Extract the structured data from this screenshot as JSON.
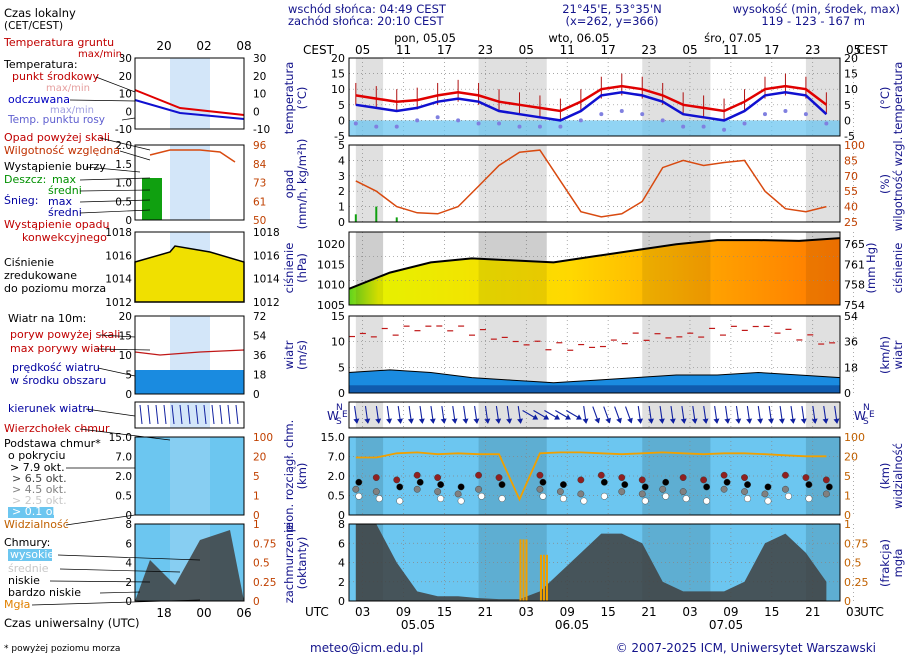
{
  "header": {
    "sunrise": "wschód słońca: 04:49 CEST",
    "sunset": "zachód słońca: 20:10 CEST",
    "coords": "21°45'E, 53°35'N",
    "grid": "(x=262,  y=366)",
    "height_label": "wysokość (min, środek, max)",
    "height_values": "119 - 123 - 167 m"
  },
  "time": {
    "cest_label": "CEST",
    "utc_label": "UTC",
    "cest_hours": [
      "05",
      "11",
      "17",
      "23",
      "05",
      "11",
      "17",
      "23",
      "05",
      "11",
      "17",
      "23",
      "05"
    ],
    "utc_hours": [
      "03",
      "09",
      "15",
      "21",
      "03",
      "09",
      "15",
      "21",
      "03",
      "09",
      "15",
      "21",
      "03"
    ],
    "day_names": [
      "pon, 05.05",
      "wto, 06.05",
      "śro, 07.05"
    ],
    "day_dates": [
      "05.05",
      "06.05",
      "07.05"
    ]
  },
  "legend": {
    "local_time": "Czas lokalny",
    "local_time_sub": "(CET/CEST)",
    "mini_top_ticks": [
      "20",
      "02",
      "08"
    ],
    "mini_bottom_ticks": [
      "18",
      "00",
      "06"
    ],
    "soil_temp": "Temperatura gruntu",
    "soil_temp_sub": "max/min",
    "temperature": "Temperatura:",
    "mid_point": "punkt środkowy",
    "max_min": "max/min",
    "felt": "odczuwana",
    "felt_max_min": "max/min",
    "dew_point": "Temp. punktu rosy",
    "precip_above": "Opad powyżej skali",
    "humidity": "Wilgotność względna",
    "storm": "Wystąpienie burzy",
    "rain": "Deszcz:",
    "rain_max": "max",
    "rain_mid": "średni",
    "snow": "Śnieg:",
    "snow_max": "max",
    "snow_mid": "średni",
    "precip_occurrence": "Wystąpienie opadu",
    "precip_occurrence2": "konwekcyjnego",
    "pressure_l1": "Ciśnienie",
    "pressure_l2": "zredukowane",
    "pressure_l3": "do poziomu morza",
    "wind_title": "Wiatr na 10m:",
    "gust_above": "poryw powyżej skali",
    "gust_max": "max porywy wiatru",
    "wind_speed": "prędkość wiatru",
    "wind_area": "w środku obszaru",
    "wind_dir": "kierunek wiatru",
    "cloud_top": "Wierzchołek chmur",
    "cloud_base": "Podstawa chmur*",
    "cloud_base_sub": "o pokryciu",
    "okt1": "> 7.9 okt.",
    "okt2": "> 6.5 okt.",
    "okt3": "> 4.5 okt.",
    "okt4": "> 2.5 okt.",
    "okt5": "> 0.1 okt.",
    "visibility": "Widzialność",
    "clouds": "Chmury:",
    "high": "wysokie",
    "mid": "średnie",
    "low": "niskie",
    "very_low": "bardzo niskie",
    "fog": "Mgła",
    "utc_time": "Czas uniwersalny (UTC)",
    "footnote": "* powyżej poziomu morza"
  },
  "axes": {
    "temp_left": "temperatura",
    "temp_left_unit": "(°C)",
    "temp_right": "temperatura",
    "temp_right_unit": "(°C)",
    "precip_left": "opad",
    "precip_left_unit": "(mm/h, kg/m²h)",
    "precip_right": "wilgotność wzgl.",
    "precip_right_unit": "(%)",
    "press_left": "ciśnienie",
    "press_left_unit": "(hPa)",
    "press_right": "ciśnienie",
    "press_right_unit": "(mm Hg)",
    "wind_left": "wiatr",
    "wind_left_unit": "(m/s)",
    "wind_right": "wiatr",
    "wind_right_unit": "(km/h)",
    "cloud_left": "pion. rozciągł. chm.",
    "cloud_left_unit": "(km)",
    "cloud_right": "widzialność",
    "cloud_right_unit": "(km)",
    "cover_left": "zachmurzenie",
    "cover_left_unit": "(oktanty)",
    "cover_right": "mgła",
    "cover_right_unit": "(frakcja)"
  },
  "footer": {
    "email": "meteo@icm.edu.pl",
    "copyright": "© 2007-2025 ICM, Uniwersytet Warszawski"
  },
  "mini_axes": {
    "temp_left": [
      "30",
      "20",
      "10",
      "0",
      "-10"
    ],
    "temp_right": [
      "30",
      "20",
      "10",
      "0",
      "-10"
    ],
    "precip_left": [
      "2.0",
      "1.5",
      "1.0",
      "0.5",
      "0"
    ],
    "precip_right": [
      "96",
      "84",
      "73",
      "61",
      "50"
    ],
    "press_left": [
      "1018",
      "1016",
      "1014",
      "1012"
    ],
    "press_right": [
      "1018",
      "1016",
      "1014",
      "1012"
    ],
    "wind_left": [
      "20",
      "15",
      "10",
      "5",
      "0"
    ],
    "wind_right": [
      "72",
      "54",
      "36",
      "18",
      "0"
    ],
    "cloud_left": [
      "15.0",
      "7.0",
      "2.0",
      "0.5",
      "0"
    ],
    "cloud_right": [
      "100",
      "20",
      "5",
      "1",
      "0"
    ],
    "cover_left": [
      "8",
      "6",
      "4",
      "2",
      "0"
    ],
    "cover_right": [
      "1",
      "0.75",
      "0.5",
      "0.25",
      "0"
    ]
  },
  "chart_data": [
    {
      "type": "line",
      "title": "temperatura (°C)",
      "x": [
        0,
        3,
        6,
        9,
        12,
        15,
        18,
        21,
        24,
        27,
        30,
        33,
        36,
        39,
        42,
        45,
        48,
        51,
        54,
        57,
        60,
        63,
        66,
        69
      ],
      "ylim": [
        -5,
        20
      ],
      "yticks": [
        -5,
        0,
        5,
        10,
        15,
        20
      ],
      "series": [
        {
          "name": "temperatura",
          "values": [
            8,
            7,
            6,
            6.5,
            8,
            9,
            8,
            6,
            5,
            4,
            3,
            6,
            10,
            11,
            10,
            8,
            5,
            4,
            3,
            6,
            10,
            11,
            10,
            5
          ]
        },
        {
          "name": "temperatura odczuwana",
          "values": [
            5,
            4,
            3,
            4,
            6,
            7,
            6,
            3,
            2,
            1,
            0,
            3,
            8,
            9,
            8,
            6,
            2,
            1,
            0,
            3,
            8,
            9,
            8,
            2
          ]
        },
        {
          "name": "temp. punktu rosy",
          "values": [
            -1,
            -2,
            -2,
            0,
            1,
            0,
            -1,
            -1,
            -2,
            -2,
            -2,
            0,
            2,
            3,
            2,
            0,
            -2,
            -2,
            -3,
            -1,
            2,
            3,
            2,
            -1
          ]
        }
      ]
    },
    {
      "type": "line",
      "title": "opad (mm/h) / wilgotność wzgl. (%)",
      "x": [
        0,
        3,
        6,
        9,
        12,
        15,
        18,
        21,
        24,
        27,
        30,
        33,
        36,
        39,
        42,
        45,
        48,
        51,
        54,
        57,
        60,
        63,
        66,
        69
      ],
      "ylim": [
        0,
        5
      ],
      "y2lim": [
        25,
        100
      ],
      "series": [
        {
          "name": "wilgotność wzgl.",
          "values": [
            65,
            55,
            40,
            34,
            33,
            40,
            60,
            80,
            93,
            95,
            65,
            35,
            30,
            33,
            45,
            78,
            85,
            80,
            83,
            85,
            55,
            38,
            35,
            40
          ]
        },
        {
          "name": "opad",
          "values": [
            0.5,
            1.0,
            0.3,
            0,
            0,
            0,
            0,
            0,
            0,
            0,
            0,
            0,
            0,
            0,
            0,
            0,
            0,
            0,
            0,
            0,
            0,
            0,
            0,
            0
          ]
        }
      ]
    },
    {
      "type": "area",
      "title": "ciśnienie (hPa)",
      "x": [
        0,
        6,
        12,
        18,
        24,
        30,
        36,
        42,
        48,
        54,
        60,
        66,
        72
      ],
      "ylim": [
        1005,
        1023
      ],
      "yticks": [
        1005,
        1010,
        1015,
        1020
      ],
      "series": [
        {
          "name": "ciśnienie",
          "values": [
            1009,
            1013,
            1015.5,
            1016.5,
            1016,
            1015.5,
            1017,
            1018.5,
            1020,
            1021,
            1021,
            1020.8,
            1021.5
          ]
        }
      ]
    },
    {
      "type": "area",
      "title": "wiatr (m/s)",
      "x": [
        0,
        6,
        12,
        18,
        24,
        30,
        36,
        42,
        48,
        54,
        60,
        66,
        72
      ],
      "ylim": [
        0,
        15
      ],
      "yticks": [
        0,
        5,
        10,
        15
      ],
      "series": [
        {
          "name": "prędkość wiatru",
          "values": [
            4,
            4.5,
            4,
            3,
            2.5,
            2,
            2.5,
            3,
            3.5,
            3.5,
            4,
            3.5,
            3
          ]
        },
        {
          "name": "max porywy wiatru",
          "values": [
            11,
            12,
            13,
            12,
            10,
            9,
            9,
            11,
            11,
            12,
            13,
            11,
            9
          ]
        }
      ]
    },
    {
      "type": "line",
      "title": "pion. rozciągł. chm. (km) / widzialność (km)",
      "ylim": [
        0,
        15
      ],
      "yticks": [
        "0",
        "0.5",
        "2.0",
        "7.0",
        "15.0"
      ],
      "y2ticks": [
        "0",
        "1",
        "5",
        "20",
        "100"
      ],
      "series": [
        {
          "name": "widzialność",
          "values": [
            22,
            22,
            30,
            32,
            28,
            30,
            28,
            28,
            1,
            30,
            32,
            32,
            30,
            28,
            30,
            32,
            30,
            28,
            30,
            30,
            28,
            26,
            24,
            24
          ]
        }
      ]
    },
    {
      "type": "area",
      "title": "zachmurzenie (oktanty) / mgła (frakcja)",
      "ylim": [
        0,
        8
      ],
      "yticks": [
        0,
        2,
        4,
        6,
        8
      ],
      "y2ticks": [
        0,
        0.25,
        0.5,
        0.75,
        1
      ],
      "series": [
        {
          "name": "zachmurzenie",
          "values": [
            8,
            8,
            4,
            1,
            0.5,
            0.5,
            0.3,
            0.2,
            0.2,
            1,
            3,
            5,
            7,
            7,
            6,
            2,
            1,
            1,
            1,
            2,
            6,
            7,
            5,
            2
          ]
        },
        {
          "name": "mgła",
          "values": [
            0,
            0,
            0,
            0,
            0,
            0,
            0,
            0,
            0.8,
            0.6,
            0,
            0,
            0,
            0,
            0,
            0,
            0,
            0,
            0,
            0,
            0,
            0,
            0,
            0
          ]
        }
      ]
    }
  ]
}
